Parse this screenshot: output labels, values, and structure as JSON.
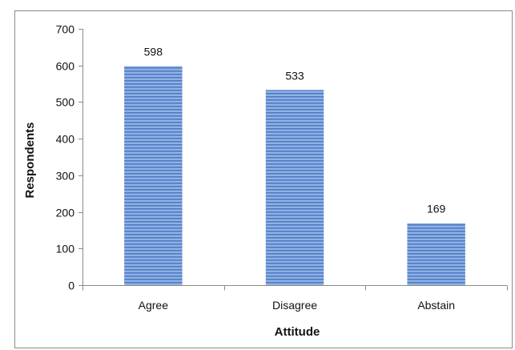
{
  "chart_data": {
    "type": "bar",
    "title": "",
    "xlabel": "Attitude",
    "ylabel": "Respondents",
    "categories": [
      "Agree",
      "Disagree",
      "Abstain"
    ],
    "values": [
      598,
      533,
      169
    ],
    "ylim": [
      0,
      700
    ],
    "yticks": [
      0,
      100,
      200,
      300,
      400,
      500,
      600,
      700
    ],
    "grid": false,
    "legend": "none",
    "show_data_labels": true,
    "bar_fill": "#8fb2e3",
    "bar_stripe": "#4f79c4"
  }
}
